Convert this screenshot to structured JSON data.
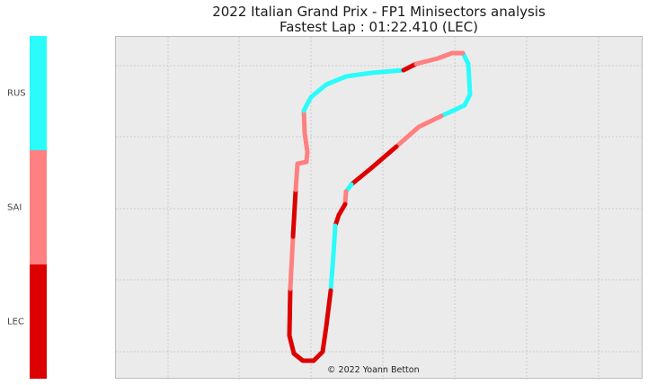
{
  "chart_data": {
    "type": "scatter",
    "title": [
      "2022 Italian Grand Prix - FP1 Minisectors analysis",
      "Fastest Lap : 01:22.410 (LEC)"
    ],
    "xlabel": "",
    "ylabel": "",
    "grid": true,
    "legend": {
      "kind": "colorbar",
      "placement": "left",
      "entries": [
        {
          "name": "RUS",
          "color": "#2bfbfb"
        },
        {
          "name": "SAI",
          "color": "#ff8080"
        },
        {
          "name": "LEC",
          "color": "#dd0000"
        }
      ]
    },
    "track": {
      "path": [
        [
          514,
          58
        ],
        [
          520,
          70
        ],
        [
          522,
          104
        ],
        [
          516,
          116
        ],
        [
          490,
          128
        ],
        [
          465,
          140
        ],
        [
          440,
          162
        ],
        [
          412,
          186
        ],
        [
          390,
          204
        ],
        [
          384,
          212
        ],
        [
          383,
          226
        ],
        [
          376,
          238
        ],
        [
          372,
          250
        ],
        [
          370,
          282
        ],
        [
          367,
          322
        ],
        [
          362,
          362
        ],
        [
          358,
          390
        ],
        [
          348,
          400
        ],
        [
          336,
          400
        ],
        [
          326,
          392
        ],
        [
          321,
          372
        ],
        [
          322,
          320
        ],
        [
          325,
          262
        ],
        [
          328,
          210
        ],
        [
          330,
          181
        ],
        [
          340,
          179
        ],
        [
          341,
          168
        ],
        [
          338,
          147
        ],
        [
          337,
          122
        ],
        [
          345,
          107
        ],
        [
          362,
          93
        ],
        [
          384,
          84
        ],
        [
          412,
          80
        ],
        [
          448,
          77
        ],
        [
          462,
          70
        ],
        [
          486,
          64
        ],
        [
          502,
          58
        ],
        [
          514,
          58
        ]
      ],
      "sectors": [
        {
          "driver": "RUS",
          "from": 0,
          "to": 4
        },
        {
          "driver": "SAI",
          "from": 4,
          "to": 7
        },
        {
          "driver": "LEC",
          "from": 6,
          "to": 8
        },
        {
          "driver": "RUS",
          "from": 8,
          "to": 9
        },
        {
          "driver": "SAI",
          "from": 9,
          "to": 10
        },
        {
          "driver": "LEC",
          "from": 10,
          "to": 12
        },
        {
          "driver": "RUS",
          "from": 12,
          "to": 14
        },
        {
          "driver": "LEC",
          "from": 14,
          "to": 17
        },
        {
          "driver": "LEC",
          "from": 17,
          "to": 19
        },
        {
          "driver": "LEC",
          "from": 19,
          "to": 21
        },
        {
          "driver": "SAI",
          "from": 21,
          "to": 22
        },
        {
          "driver": "LEC",
          "from": 22,
          "to": 23
        },
        {
          "driver": "SAI",
          "from": 23,
          "to": 28
        },
        {
          "driver": "RUS",
          "from": 28,
          "to": 33
        },
        {
          "driver": "LEC",
          "from": 33,
          "to": 34
        },
        {
          "driver": "SAI",
          "from": 34,
          "to": 37
        }
      ]
    }
  },
  "credit": "© 2022 Yoann Betton"
}
